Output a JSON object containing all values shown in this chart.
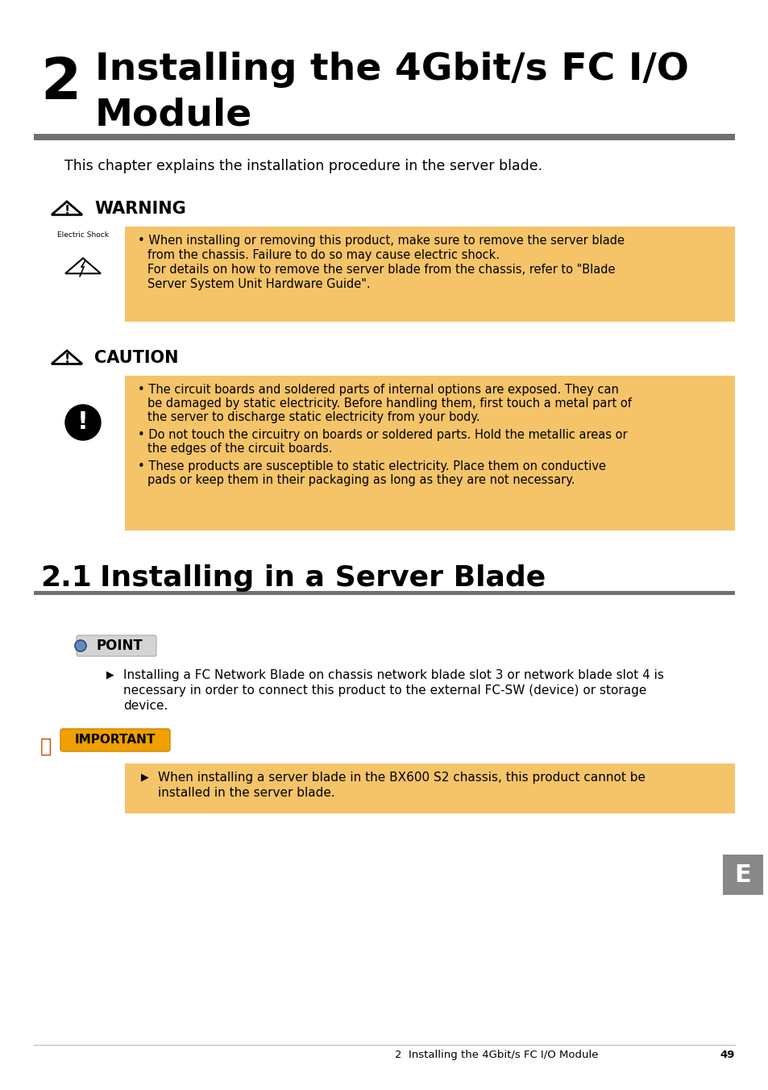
{
  "bg_color": "#ffffff",
  "chapter_num": "2",
  "chapter_title_line1": "Installing the 4Gbit/s FC I/O",
  "chapter_title_line2": "Module",
  "divider_color": "#707070",
  "intro_text": "This chapter explains the installation procedure in the server blade.",
  "warning_label": "WARNING",
  "warning_bg": "#f5c469",
  "warning_text_l1": "When installing or removing this product, make sure to remove the server blade",
  "warning_text_l2": "from the chassis. Failure to do so may cause electric shock.",
  "warning_text_l3": "For details on how to remove the server blade from the chassis, refer to \"Blade",
  "warning_text_l4": "Server System Unit Hardware Guide\".",
  "electric_shock_label": "Electric Shock",
  "caution_label": "CAUTION",
  "caution_bg": "#f5c469",
  "caution_b1l1": "The circuit boards and soldered parts of internal options are exposed. They can",
  "caution_b1l2": "be damaged by static electricity. Before handling them, first touch a metal part of",
  "caution_b1l3": "the server to discharge static electricity from your body.",
  "caution_b2l1": "Do not touch the circuitry on boards or soldered parts. Hold the metallic areas or",
  "caution_b2l2": "the edges of the circuit boards.",
  "caution_b3l1": "These products are susceptible to static electricity. Place them on conductive",
  "caution_b3l2": "pads or keep them in their packaging as long as they are not necessary.",
  "section21_num": "2.1",
  "section21_title": "Installing in a Server Blade",
  "point_label": "POINT",
  "point_b1l1": "Installing a FC Network Blade on chassis network blade slot 3 or network blade slot 4 is",
  "point_b1l2": "necessary in order to connect this product to the external FC-SW (device) or storage",
  "point_b1l3": "device.",
  "important_label": "IMPORTANT",
  "important_bg": "#f5c469",
  "important_b1l1": "When installing a server blade in the BX600 S2 chassis, this product cannot be",
  "important_b1l2": "installed in the server blade.",
  "footer_left": "2  Installing the 4Gbit/s FC I/O Module",
  "footer_page": "49",
  "tab_label": "E",
  "tab_color": "#888888"
}
